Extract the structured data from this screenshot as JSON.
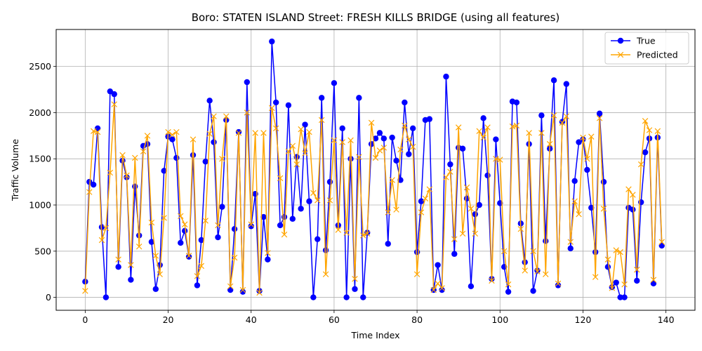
{
  "chart_data": {
    "type": "line",
    "title": "Boro: STATEN ISLAND Street: FRESH KILLS BRIDGE (using all features)",
    "xlabel": "Time Index",
    "ylabel": "Traffic Volume",
    "xlim": [
      -7,
      147
    ],
    "ylim": [
      -140,
      2900
    ],
    "xticks": [
      0,
      20,
      40,
      60,
      80,
      100,
      120,
      140
    ],
    "yticks": [
      0,
      500,
      1000,
      1500,
      2000,
      2500
    ],
    "grid": true,
    "legend": "top-right",
    "colors": {
      "true": "#0000ff",
      "predicted": "#ffa500"
    },
    "series": [
      {
        "name": "True",
        "marker": "circle",
        "values": [
          170,
          1250,
          1220,
          1830,
          760,
          0,
          2230,
          2200,
          330,
          1480,
          1300,
          190,
          1200,
          670,
          1640,
          1660,
          600,
          90,
          350,
          1370,
          1740,
          1710,
          1510,
          590,
          720,
          440,
          1540,
          130,
          620,
          1470,
          2130,
          1680,
          650,
          980,
          1920,
          80,
          740,
          1790,
          60,
          2330,
          770,
          1120,
          70,
          870,
          410,
          2770,
          2110,
          780,
          870,
          2080,
          850,
          1520,
          960,
          1870,
          1040,
          0,
          630,
          2160,
          510,
          1250,
          2320,
          780,
          1830,
          0,
          1500,
          90,
          2160,
          0,
          700,
          1660,
          1720,
          1780,
          1720,
          580,
          1730,
          1480,
          1270,
          2110,
          1550,
          1830,
          490,
          1040,
          1920,
          1930,
          80,
          350,
          80,
          2390,
          1440,
          470,
          1620,
          1610,
          1070,
          120,
          900,
          1000,
          1940,
          1320,
          200,
          1710,
          1020,
          330,
          60,
          2120,
          2110,
          800,
          380,
          1660,
          70,
          290,
          1970,
          610,
          1610,
          2350,
          130,
          1900,
          2310,
          530,
          1260,
          1680,
          1710,
          1380,
          970,
          490,
          1990,
          1250,
          330,
          110,
          160,
          0,
          0,
          970,
          950,
          180,
          1030,
          1570,
          1720,
          150,
          1730,
          560
        ]
      },
      {
        "name": "Predicted",
        "marker": "x",
        "values": [
          70,
          1140,
          1800,
          1790,
          620,
          750,
          1350,
          2090,
          410,
          1540,
          1320,
          350,
          1510,
          550,
          1580,
          1750,
          810,
          450,
          250,
          860,
          1790,
          1760,
          1790,
          880,
          790,
          450,
          1710,
          230,
          340,
          830,
          1770,
          1960,
          780,
          1500,
          1960,
          120,
          430,
          1780,
          80,
          2000,
          790,
          1780,
          50,
          1780,
          480,
          2050,
          1830,
          1290,
          680,
          1580,
          1640,
          1440,
          1820,
          1560,
          1790,
          1130,
          1050,
          1920,
          250,
          1050,
          1700,
          730,
          1680,
          700,
          1700,
          200,
          1520,
          670,
          690,
          1890,
          1510,
          1590,
          1620,
          920,
          1270,
          950,
          1600,
          1860,
          1710,
          1630,
          250,
          920,
          1070,
          1170,
          80,
          150,
          100,
          1300,
          1360,
          630,
          1840,
          690,
          1190,
          960,
          690,
          1800,
          1730,
          1840,
          180,
          1500,
          1490,
          500,
          140,
          1850,
          1860,
          740,
          290,
          1780,
          500,
          280,
          1780,
          250,
          1660,
          1970,
          150,
          1890,
          1960,
          600,
          1040,
          900,
          1730,
          1500,
          1740,
          220,
          1940,
          960,
          410,
          100,
          510,
          490,
          140,
          1170,
          1110,
          300,
          1440,
          1910,
          1810,
          190,
          1800,
          600
        ]
      }
    ]
  }
}
